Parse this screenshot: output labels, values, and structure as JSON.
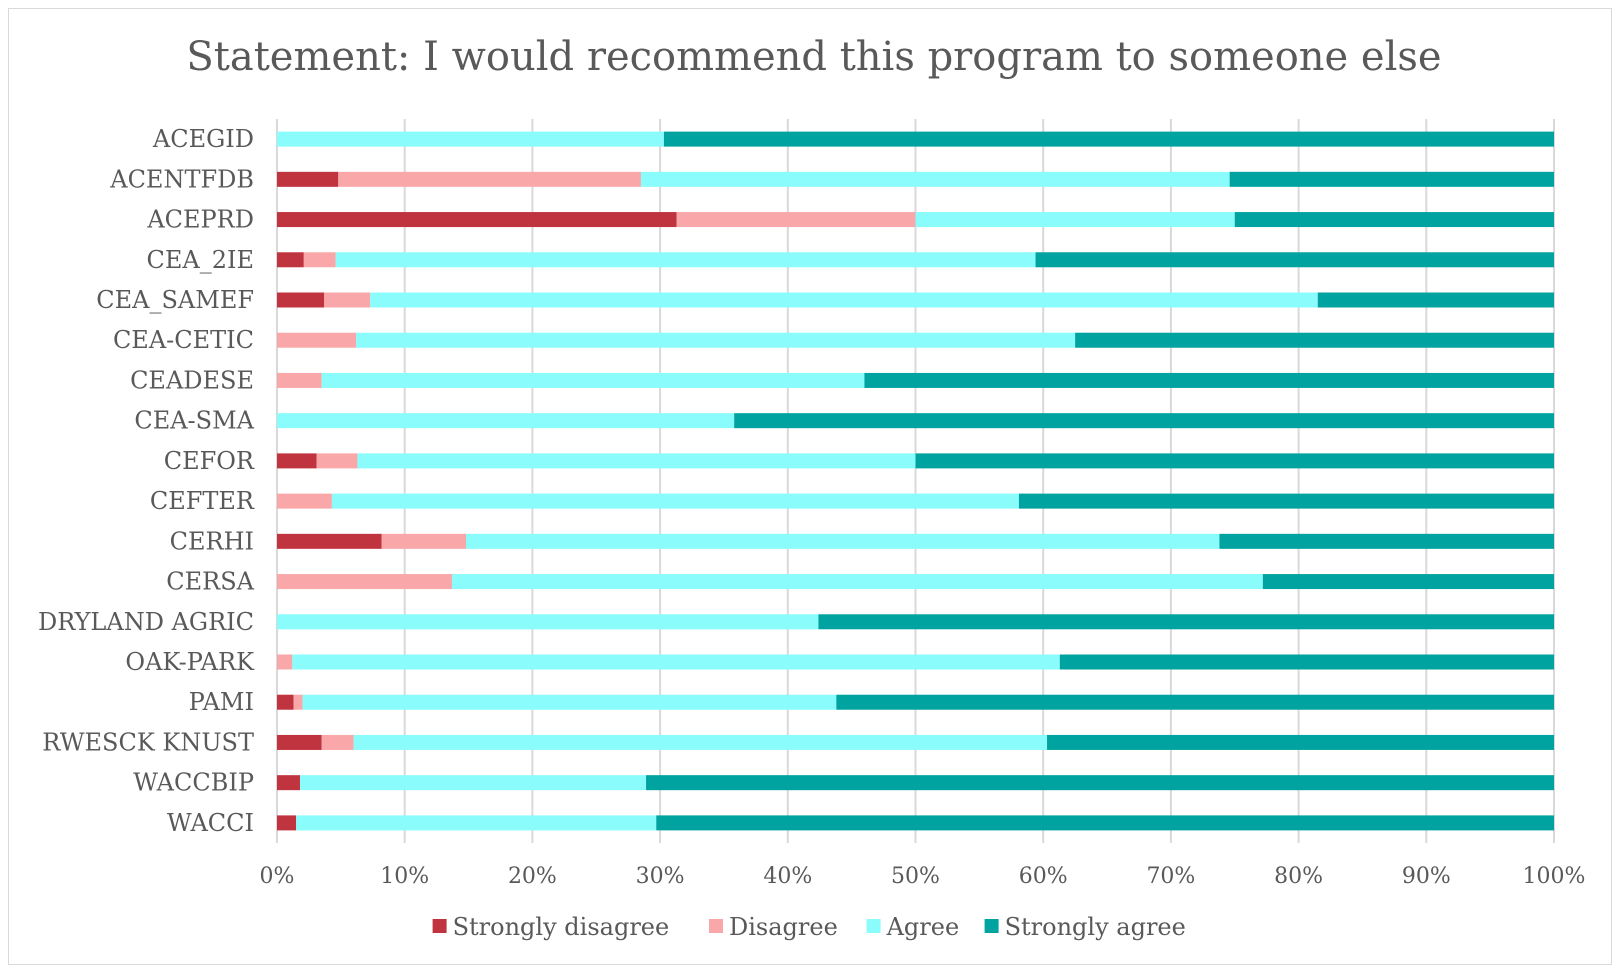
{
  "chart_data": {
    "type": "bar",
    "orientation": "horizontal-stacked-100",
    "title": "Statement: I would recommend this program to someone else",
    "xlabel": "",
    "ylabel": "",
    "xlim": [
      0,
      100
    ],
    "x_ticks": [
      "0%",
      "10%",
      "20%",
      "30%",
      "40%",
      "50%",
      "60%",
      "70%",
      "80%",
      "90%",
      "100%"
    ],
    "grid": true,
    "legend_position": "bottom",
    "categories": [
      "ACEGID",
      "ACENTFDB",
      "ACEPRD",
      "CEA_2IE",
      "CEA_SAMEF",
      "CEA-CETIC",
      "CEADESE",
      "CEA-SMA",
      "CEFOR",
      "CEFTER",
      "CERHI",
      "CERSA",
      "DRYLAND AGRIC",
      "OAK-PARK",
      "PAMI",
      "RWESCK KNUST",
      "WACCBIP",
      "WACCI"
    ],
    "series": [
      {
        "name": "Strongly disagree",
        "color": "#c0343f",
        "values": [
          0,
          4.8,
          31.3,
          2.1,
          3.7,
          0,
          0,
          0,
          3.1,
          0,
          8.2,
          0,
          0,
          0,
          1.3,
          3.5,
          1.8,
          1.5
        ]
      },
      {
        "name": "Disagree",
        "color": "#f9a7a9",
        "values": [
          0,
          23.7,
          18.7,
          2.5,
          3.6,
          6.2,
          3.5,
          0,
          3.2,
          4.3,
          6.6,
          13.7,
          0,
          1.2,
          0.7,
          2.5,
          0,
          0
        ]
      },
      {
        "name": "Agree",
        "color": "#8afcfc",
        "values": [
          30.3,
          46.1,
          25.0,
          54.8,
          74.2,
          56.3,
          42.5,
          35.8,
          43.7,
          53.8,
          59.0,
          63.5,
          42.4,
          60.1,
          41.8,
          54.3,
          27.1,
          28.2
        ]
      },
      {
        "name": "Strongly agree",
        "color": "#00a3a0",
        "values": [
          69.7,
          25.4,
          25.0,
          40.6,
          18.5,
          37.5,
          54.0,
          64.2,
          50.0,
          41.9,
          26.2,
          22.8,
          57.6,
          38.7,
          56.2,
          39.7,
          71.1,
          70.3
        ]
      }
    ]
  }
}
